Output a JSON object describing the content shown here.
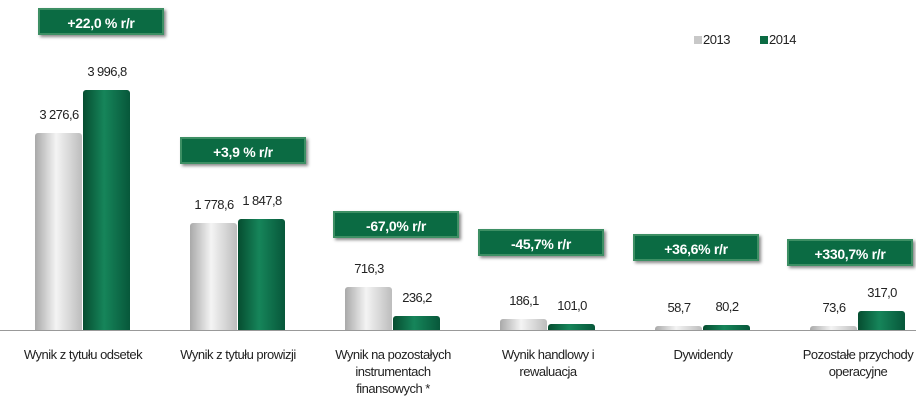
{
  "chart_data": {
    "type": "bar",
    "categories": [
      "Wynik z tytułu odsetek",
      "Wynik z tytułu prowizji",
      "Wynik na pozostałych instrumentach finansowych *",
      "Wynik handlowy i rewaluacja",
      "Dywidendy",
      "Pozostałe przychody operacyjne"
    ],
    "series": [
      {
        "name": "2013",
        "color": "#c8c8c8",
        "values": [
          3276.6,
          1778.6,
          716.3,
          186.1,
          58.7,
          73.6
        ],
        "value_labels": [
          "3 276,6",
          "1 778,6",
          "716,3",
          "186,1",
          "58,7",
          "73,6"
        ]
      },
      {
        "name": "2014",
        "color": "#0b6b43",
        "values": [
          3996.8,
          1847.8,
          236.2,
          101.0,
          80.2,
          317.0
        ],
        "value_labels": [
          "3 996,8",
          "1 847,8",
          "236,2",
          "101,0",
          "80,2",
          "317,0"
        ]
      }
    ],
    "annotations": [
      "+22,0 % r/r",
      "+3,9 % r/r",
      "-67,0% r/r",
      "-45,7% r/r",
      "+36,6%  r/r",
      "+330,7% r/r"
    ],
    "legend": "top-right"
  }
}
